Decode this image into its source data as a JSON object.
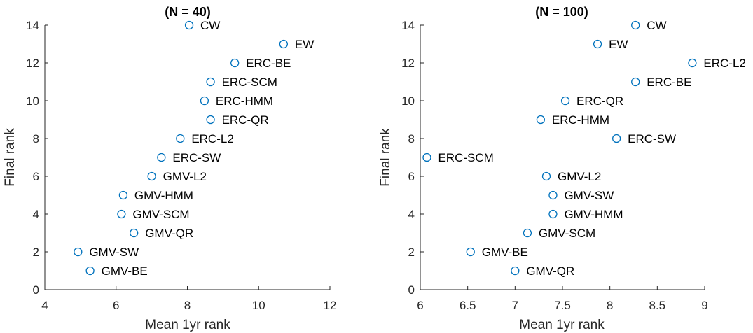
{
  "marker_color": "#0072BD",
  "chart_data": [
    {
      "type": "scatter",
      "title": "(N = 40)",
      "xlabel": "Mean 1yr rank",
      "ylabel": "Final rank",
      "xlim": [
        4,
        12
      ],
      "ylim": [
        0,
        14
      ],
      "xticks": [
        "4",
        "6",
        "8",
        "10",
        "12"
      ],
      "yticks": [
        "0",
        "2",
        "4",
        "6",
        "8",
        "10",
        "12",
        "14"
      ],
      "points": [
        {
          "label": "CW",
          "x": 8.05,
          "y": 14
        },
        {
          "label": "EW",
          "x": 10.7,
          "y": 13
        },
        {
          "label": "ERC-BE",
          "x": 9.33,
          "y": 12
        },
        {
          "label": "ERC-SCM",
          "x": 8.65,
          "y": 11
        },
        {
          "label": "ERC-HMM",
          "x": 8.48,
          "y": 10
        },
        {
          "label": "ERC-QR",
          "x": 8.65,
          "y": 9
        },
        {
          "label": "ERC-L2",
          "x": 7.8,
          "y": 8
        },
        {
          "label": "ERC-SW",
          "x": 7.27,
          "y": 7
        },
        {
          "label": "GMV-L2",
          "x": 7.0,
          "y": 6
        },
        {
          "label": "GMV-HMM",
          "x": 6.2,
          "y": 5
        },
        {
          "label": "GMV-SCM",
          "x": 6.15,
          "y": 4
        },
        {
          "label": "GMV-QR",
          "x": 6.5,
          "y": 3
        },
        {
          "label": "GMV-SW",
          "x": 4.93,
          "y": 2
        },
        {
          "label": "GMV-BE",
          "x": 5.27,
          "y": 1
        }
      ]
    },
    {
      "type": "scatter",
      "title": "(N = 100)",
      "xlabel": "Mean 1yr rank",
      "ylabel": "Final rank",
      "xlim": [
        6,
        9
      ],
      "ylim": [
        0,
        14
      ],
      "xticks": [
        "6",
        "6.5",
        "7",
        "7.5",
        "8",
        "8.5",
        "9"
      ],
      "yticks": [
        "0",
        "2",
        "4",
        "6",
        "8",
        "10",
        "12",
        "14"
      ],
      "points": [
        {
          "label": "CW",
          "x": 8.27,
          "y": 14
        },
        {
          "label": "EW",
          "x": 7.87,
          "y": 13
        },
        {
          "label": "ERC-L2",
          "x": 8.87,
          "y": 12
        },
        {
          "label": "ERC-BE",
          "x": 8.27,
          "y": 11
        },
        {
          "label": "ERC-QR",
          "x": 7.53,
          "y": 10
        },
        {
          "label": "ERC-HMM",
          "x": 7.27,
          "y": 9
        },
        {
          "label": "ERC-SW",
          "x": 8.07,
          "y": 8
        },
        {
          "label": "ERC-SCM",
          "x": 6.07,
          "y": 7
        },
        {
          "label": "GMV-L2",
          "x": 7.33,
          "y": 6
        },
        {
          "label": "GMV-SW",
          "x": 7.4,
          "y": 5
        },
        {
          "label": "GMV-HMM",
          "x": 7.4,
          "y": 4
        },
        {
          "label": "GMV-SCM",
          "x": 7.13,
          "y": 3
        },
        {
          "label": "GMV-BE",
          "x": 6.53,
          "y": 2
        },
        {
          "label": "GMV-QR",
          "x": 7.0,
          "y": 1
        }
      ]
    }
  ]
}
